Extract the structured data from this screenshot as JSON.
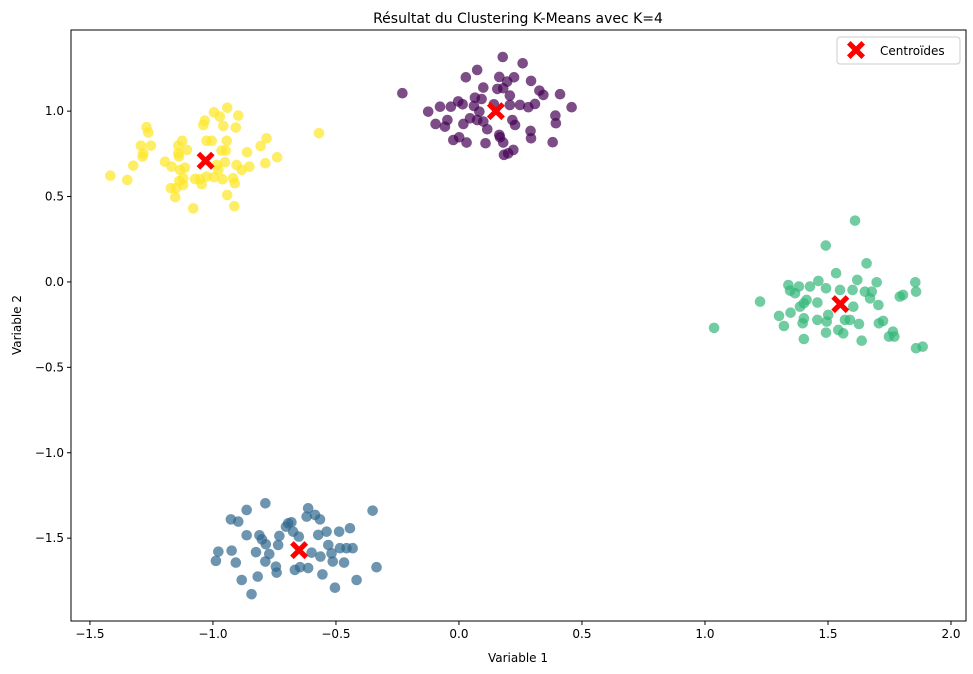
{
  "chart_data": {
    "type": "scatter",
    "title": "Résultat du Clustering K-Means avec K=4",
    "xlabel": "Variable 1",
    "ylabel": "Variable 2",
    "xlim": [
      -1.577,
      2.061
    ],
    "ylim": [
      -1.985,
      1.475
    ],
    "xticks": [
      -1.5,
      -1.0,
      -0.5,
      0.0,
      0.5,
      1.0,
      1.5,
      2.0
    ],
    "yticks": [
      -1.5,
      -1.0,
      -0.5,
      0.0,
      0.5,
      1.0
    ],
    "xtick_labels": [
      "−1.5",
      "−1.0",
      "−0.5",
      "0.0",
      "0.5",
      "1.0",
      "1.5",
      "2.0"
    ],
    "ytick_labels": [
      "−1.5",
      "−1.0",
      "−0.5",
      "0.0",
      "0.5",
      "1.0"
    ],
    "grid": false,
    "legend": {
      "position": "top-right",
      "entries": [
        {
          "label": "Centroïdes",
          "color": "#ff0000",
          "marker": "X"
        }
      ]
    },
    "point_alpha": 0.7,
    "clusters": [
      {
        "color": "#440154",
        "points": [
          [
            -0.23,
            1.105
          ],
          [
            -0.125,
            0.997
          ],
          [
            -0.095,
            0.925
          ],
          [
            -0.077,
            1.026
          ],
          [
            -0.057,
            0.909
          ],
          [
            -0.047,
            0.948
          ],
          [
            -0.033,
            1.026
          ],
          [
            -0.023,
            0.831
          ],
          [
            0.001,
            0.847
          ],
          [
            0.031,
            0.816
          ],
          [
            -0.003,
            1.057
          ],
          [
            0.015,
            1.04
          ],
          [
            0.018,
            0.925
          ],
          [
            0.028,
            1.198
          ],
          [
            0.045,
            0.958
          ],
          [
            0.065,
            1.079
          ],
          [
            0.061,
            1.03
          ],
          [
            0.074,
            1.241
          ],
          [
            0.092,
            1.071
          ],
          [
            0.099,
            1.138
          ],
          [
            0.083,
            0.997
          ],
          [
            0.074,
            0.948
          ],
          [
            0.099,
            0.939
          ],
          [
            0.115,
            0.894
          ],
          [
            0.108,
            0.812
          ],
          [
            0.142,
            1.04
          ],
          [
            0.164,
            1.2
          ],
          [
            0.156,
            1.13
          ],
          [
            0.164,
            0.861
          ],
          [
            0.167,
            0.847
          ],
          [
            0.178,
            1.317
          ],
          [
            0.18,
            1.134
          ],
          [
            0.196,
            1.173
          ],
          [
            0.207,
            1.091
          ],
          [
            0.224,
            1.198
          ],
          [
            0.207,
            1.036
          ],
          [
            0.217,
            0.948
          ],
          [
            0.228,
            0.919
          ],
          [
            0.18,
            0.816
          ],
          [
            0.183,
            0.744
          ],
          [
            0.2,
            0.753
          ],
          [
            0.221,
            0.773
          ],
          [
            0.259,
            1.28
          ],
          [
            0.248,
            1.036
          ],
          [
            0.282,
            1.023
          ],
          [
            0.309,
            1.042
          ],
          [
            0.293,
            1.177
          ],
          [
            0.327,
            1.12
          ],
          [
            0.343,
            1.095
          ],
          [
            0.291,
            0.884
          ],
          [
            0.293,
            0.841
          ],
          [
            0.392,
            0.974
          ],
          [
            0.394,
            0.929
          ],
          [
            0.411,
            1.099
          ],
          [
            0.381,
            0.818
          ],
          [
            0.458,
            1.023
          ]
        ]
      },
      {
        "color": "#31688e",
        "points": [
          [
            -0.988,
            -1.633
          ],
          [
            -0.978,
            -1.579
          ],
          [
            -0.924,
            -1.573
          ],
          [
            -0.927,
            -1.39
          ],
          [
            -0.897,
            -1.403
          ],
          [
            -0.907,
            -1.643
          ],
          [
            -0.883,
            -1.745
          ],
          [
            -0.863,
            -1.335
          ],
          [
            -0.863,
            -1.483
          ],
          [
            -0.843,
            -1.828
          ],
          [
            -0.825,
            -1.582
          ],
          [
            -0.818,
            -1.725
          ],
          [
            -0.811,
            -1.483
          ],
          [
            -0.801,
            -1.507
          ],
          [
            -0.787,
            -1.296
          ],
          [
            -0.785,
            -1.536
          ],
          [
            -0.787,
            -1.637
          ],
          [
            -0.771,
            -1.593
          ],
          [
            -0.744,
            -1.667
          ],
          [
            -0.741,
            -1.702
          ],
          [
            -0.735,
            -1.54
          ],
          [
            -0.73,
            -1.487
          ],
          [
            -0.703,
            -1.433
          ],
          [
            -0.694,
            -1.413
          ],
          [
            -0.681,
            -1.407
          ],
          [
            -0.674,
            -1.462
          ],
          [
            -0.667,
            -1.686
          ],
          [
            -0.651,
            -1.491
          ],
          [
            -0.646,
            -1.67
          ],
          [
            -0.619,
            -1.374
          ],
          [
            -0.613,
            -1.325
          ],
          [
            -0.613,
            -1.675
          ],
          [
            -0.585,
            -1.364
          ],
          [
            -0.565,
            -1.39
          ],
          [
            -0.599,
            -1.585
          ],
          [
            -0.572,
            -1.481
          ],
          [
            -0.563,
            -1.608
          ],
          [
            -0.555,
            -1.712
          ],
          [
            -0.538,
            -1.462
          ],
          [
            -0.531,
            -1.54
          ],
          [
            -0.518,
            -1.589
          ],
          [
            -0.513,
            -1.637
          ],
          [
            -0.504,
            -1.79
          ],
          [
            -0.487,
            -1.462
          ],
          [
            -0.484,
            -1.559
          ],
          [
            -0.467,
            -1.643
          ],
          [
            -0.457,
            -1.559
          ],
          [
            -0.443,
            -1.442
          ],
          [
            -0.432,
            -1.559
          ],
          [
            -0.416,
            -1.745
          ],
          [
            -0.351,
            -1.339
          ],
          [
            -0.335,
            -1.67
          ]
        ]
      },
      {
        "color": "#35b779",
        "points": [
          [
            1.037,
            -0.269
          ],
          [
            1.224,
            -0.115
          ],
          [
            1.301,
            -0.199
          ],
          [
            1.321,
            -0.258
          ],
          [
            1.348,
            -0.18
          ],
          [
            1.339,
            -0.018
          ],
          [
            1.346,
            -0.051
          ],
          [
            1.366,
            -0.066
          ],
          [
            1.382,
            -0.027
          ],
          [
            1.386,
            -0.145
          ],
          [
            1.402,
            -0.125
          ],
          [
            1.413,
            -0.105
          ],
          [
            1.397,
            -0.242
          ],
          [
            1.402,
            -0.213
          ],
          [
            1.402,
            -0.334
          ],
          [
            1.427,
            -0.027
          ],
          [
            1.457,
            -0.121
          ],
          [
            1.461,
            0.006
          ],
          [
            1.491,
            0.213
          ],
          [
            1.492,
            -0.037
          ],
          [
            1.457,
            -0.222
          ],
          [
            1.495,
            -0.232
          ],
          [
            1.501,
            -0.193
          ],
          [
            1.492,
            -0.297
          ],
          [
            1.533,
            0.051
          ],
          [
            1.549,
            -0.047
          ],
          [
            1.542,
            -0.281
          ],
          [
            1.562,
            -0.301
          ],
          [
            1.569,
            -0.222
          ],
          [
            1.589,
            -0.222
          ],
          [
            1.603,
            -0.145
          ],
          [
            1.6,
            -0.047
          ],
          [
            1.61,
            0.359
          ],
          [
            1.619,
            0.012
          ],
          [
            1.626,
            -0.246
          ],
          [
            1.637,
            -0.344
          ],
          [
            1.65,
            -0.057
          ],
          [
            1.657,
            0.109
          ],
          [
            1.671,
            -0.096
          ],
          [
            1.678,
            -0.057
          ],
          [
            1.698,
            -0.002
          ],
          [
            1.705,
            -0.135
          ],
          [
            1.707,
            -0.242
          ],
          [
            1.724,
            -0.228
          ],
          [
            1.748,
            -0.32
          ],
          [
            1.764,
            -0.291
          ],
          [
            1.77,
            -0.32
          ],
          [
            1.792,
            -0.086
          ],
          [
            1.805,
            -0.076
          ],
          [
            1.855,
            -0.002
          ],
          [
            1.858,
            -0.057
          ],
          [
            1.858,
            -0.388
          ],
          [
            1.885,
            -0.379
          ]
        ]
      },
      {
        "color": "#fde725",
        "points": [
          [
            -1.417,
            0.622
          ],
          [
            -1.348,
            0.597
          ],
          [
            -1.324,
            0.681
          ],
          [
            -1.286,
            0.734
          ],
          [
            -1.283,
            0.753
          ],
          [
            -1.293,
            0.798
          ],
          [
            -1.252,
            0.798
          ],
          [
            -1.27,
            0.906
          ],
          [
            -1.263,
            0.875
          ],
          [
            -1.195,
            0.704
          ],
          [
            -1.168,
            0.675
          ],
          [
            -1.141,
            0.798
          ],
          [
            -1.125,
            0.826
          ],
          [
            -1.141,
            0.753
          ],
          [
            -1.138,
            0.734
          ],
          [
            -1.106,
            0.773
          ],
          [
            -1.114,
            0.669
          ],
          [
            -1.134,
            0.656
          ],
          [
            -1.121,
            0.607
          ],
          [
            -1.137,
            0.591
          ],
          [
            -1.171,
            0.549
          ],
          [
            -1.15,
            0.549
          ],
          [
            -1.153,
            0.496
          ],
          [
            -1.121,
            0.568
          ],
          [
            -1.08,
            0.431
          ],
          [
            -1.073,
            0.603
          ],
          [
            -1.046,
            0.572
          ],
          [
            -1.053,
            0.601
          ],
          [
            -1.026,
            0.617
          ],
          [
            -0.996,
            0.613
          ],
          [
            -0.978,
            0.656
          ],
          [
            -0.985,
            0.685
          ],
          [
            -0.951,
            0.701
          ],
          [
            -0.965,
            0.769
          ],
          [
            -0.948,
            0.769
          ],
          [
            -0.944,
            0.826
          ],
          [
            -1.005,
            0.826
          ],
          [
            -1.026,
            0.826
          ],
          [
            -1.039,
            0.919
          ],
          [
            -1.033,
            0.944
          ],
          [
            -0.996,
            0.993
          ],
          [
            -0.972,
            0.968
          ],
          [
            -0.942,
            1.02
          ],
          [
            -0.958,
            0.913
          ],
          [
            -0.897,
            0.974
          ],
          [
            -0.907,
            0.904
          ],
          [
            -0.961,
            0.601
          ],
          [
            -0.918,
            0.607
          ],
          [
            -0.911,
            0.578
          ],
          [
            -0.942,
            0.509
          ],
          [
            -0.913,
            0.443
          ],
          [
            -0.904,
            0.685
          ],
          [
            -0.883,
            0.656
          ],
          [
            -0.852,
            0.675
          ],
          [
            -0.861,
            0.759
          ],
          [
            -0.806,
            0.796
          ],
          [
            -0.782,
            0.841
          ],
          [
            -0.787,
            0.695
          ],
          [
            -0.739,
            0.73
          ],
          [
            -0.569,
            0.871
          ]
        ]
      }
    ],
    "centroids": {
      "color": "#ff0000",
      "points": [
        [
          0.15,
          1.0
        ],
        [
          -0.65,
          -1.57
        ],
        [
          1.55,
          -0.13
        ],
        [
          -1.03,
          0.71
        ]
      ]
    }
  }
}
